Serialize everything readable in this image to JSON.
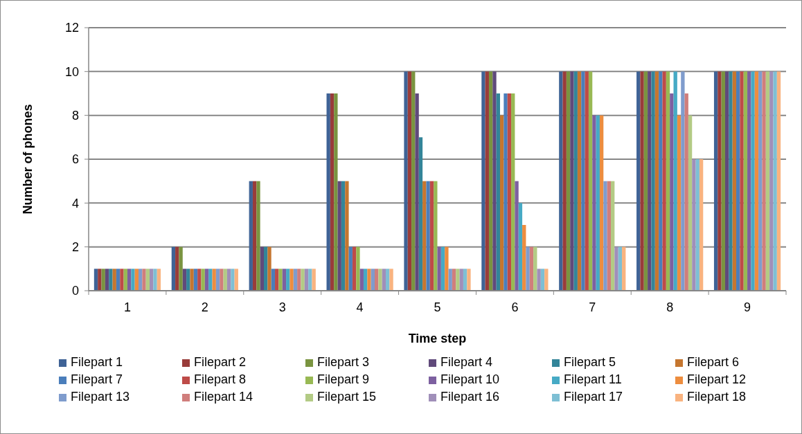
{
  "chart_data": {
    "type": "bar",
    "xlabel": "Time step",
    "ylabel": "Number of phones",
    "categories": [
      "1",
      "2",
      "3",
      "4",
      "5",
      "6",
      "7",
      "8",
      "9"
    ],
    "ylim": [
      0,
      12
    ],
    "yticks": [
      0,
      2,
      4,
      6,
      8,
      10,
      12
    ],
    "grid": "y",
    "legend": "bottom",
    "series": [
      {
        "name": "Filepart 1",
        "color": "#3f6396",
        "values": [
          1,
          2,
          5,
          9,
          10,
          10,
          10,
          10,
          10
        ]
      },
      {
        "name": "Filepart 2",
        "color": "#993c3a",
        "values": [
          1,
          2,
          5,
          9,
          10,
          10,
          10,
          10,
          10
        ]
      },
      {
        "name": "Filepart 3",
        "color": "#7a9440",
        "values": [
          1,
          2,
          5,
          9,
          10,
          10,
          10,
          10,
          10
        ]
      },
      {
        "name": "Filepart 4",
        "color": "#604a7b",
        "values": [
          1,
          1,
          2,
          5,
          9,
          10,
          10,
          10,
          10
        ]
      },
      {
        "name": "Filepart 5",
        "color": "#338599",
        "values": [
          1,
          1,
          2,
          5,
          7,
          9,
          10,
          10,
          10
        ]
      },
      {
        "name": "Filepart 6",
        "color": "#c5762f",
        "values": [
          1,
          1,
          2,
          5,
          5,
          8,
          10,
          10,
          10
        ]
      },
      {
        "name": "Filepart 7",
        "color": "#4a7ebb",
        "values": [
          1,
          1,
          1,
          2,
          5,
          9,
          10,
          10,
          10
        ]
      },
      {
        "name": "Filepart 8",
        "color": "#be4b48",
        "values": [
          1,
          1,
          1,
          2,
          5,
          9,
          10,
          10,
          10
        ]
      },
      {
        "name": "Filepart 9",
        "color": "#98b954",
        "values": [
          1,
          1,
          1,
          2,
          5,
          9,
          10,
          10,
          10
        ]
      },
      {
        "name": "Filepart 10",
        "color": "#7d60a0",
        "values": [
          1,
          1,
          1,
          1,
          2,
          5,
          8,
          9,
          10
        ]
      },
      {
        "name": "Filepart 11",
        "color": "#46aac5",
        "values": [
          1,
          1,
          1,
          1,
          2,
          4,
          8,
          10,
          10
        ]
      },
      {
        "name": "Filepart 12",
        "color": "#ed8d3f",
        "values": [
          1,
          1,
          1,
          1,
          2,
          3,
          8,
          8,
          10
        ]
      },
      {
        "name": "Filepart 13",
        "color": "#7f9ccd",
        "values": [
          1,
          1,
          1,
          1,
          1,
          2,
          5,
          10,
          10
        ]
      },
      {
        "name": "Filepart 14",
        "color": "#d07e7c",
        "values": [
          1,
          1,
          1,
          1,
          1,
          2,
          5,
          9,
          10
        ]
      },
      {
        "name": "Filepart 15",
        "color": "#b3cb85",
        "values": [
          1,
          1,
          1,
          1,
          1,
          2,
          5,
          8,
          10
        ]
      },
      {
        "name": "Filepart 16",
        "color": "#a08fb9",
        "values": [
          1,
          1,
          1,
          1,
          1,
          1,
          2,
          6,
          10
        ]
      },
      {
        "name": "Filepart 17",
        "color": "#7ebfd4",
        "values": [
          1,
          1,
          1,
          1,
          1,
          1,
          2,
          6,
          10
        ]
      },
      {
        "name": "Filepart 18",
        "color": "#f9b37f",
        "values": [
          1,
          1,
          1,
          1,
          1,
          1,
          2,
          6,
          10
        ]
      }
    ]
  }
}
